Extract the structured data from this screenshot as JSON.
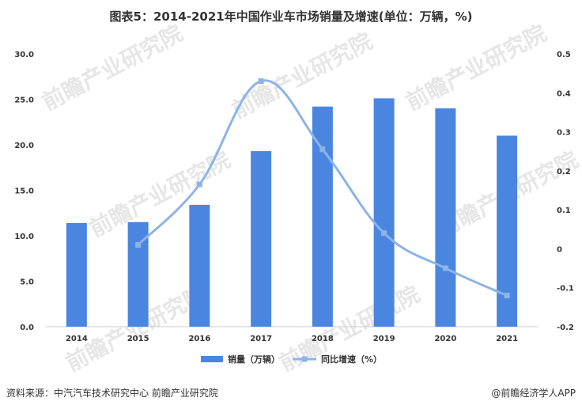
{
  "title": "图表5：2014-2021年中国作业车市场销量及增速(单位：万辆，%)",
  "source": "资料来源：中汽汽车技术研究中心 前瞻产业研究院",
  "brand": "@前瞻经济学人APP",
  "watermark": "前瞻产业研究院",
  "colors": {
    "bar": "#4a86e0",
    "line": "#8db4e8",
    "axis": "#cccccc",
    "text": "#333333"
  },
  "chart_data": {
    "type": "bar",
    "categories": [
      "2014",
      "2015",
      "2016",
      "2017",
      "2018",
      "2019",
      "2020",
      "2021"
    ],
    "series": [
      {
        "name": "销量（万辆）",
        "type": "bar",
        "axis": "left",
        "values": [
          11.4,
          11.5,
          13.4,
          19.3,
          24.2,
          25.1,
          24.0,
          21.0
        ]
      },
      {
        "name": "同比增速（%）",
        "type": "line",
        "axis": "right",
        "values": [
          null,
          0.01,
          0.165,
          0.43,
          0.255,
          0.04,
          -0.05,
          -0.12
        ]
      }
    ],
    "y_left": {
      "ylim": [
        0,
        30
      ],
      "ticks": [
        "0.0",
        "5.0",
        "10.0",
        "15.0",
        "20.0",
        "25.0",
        "30.0"
      ]
    },
    "y_right": {
      "ylim": [
        -0.2,
        0.5
      ],
      "ticks": [
        "-0.2",
        "-0.1",
        "0",
        "0.1",
        "0.2",
        "0.3",
        "0.4",
        "0.5"
      ]
    },
    "legend": "bottom-center",
    "grid": false
  }
}
